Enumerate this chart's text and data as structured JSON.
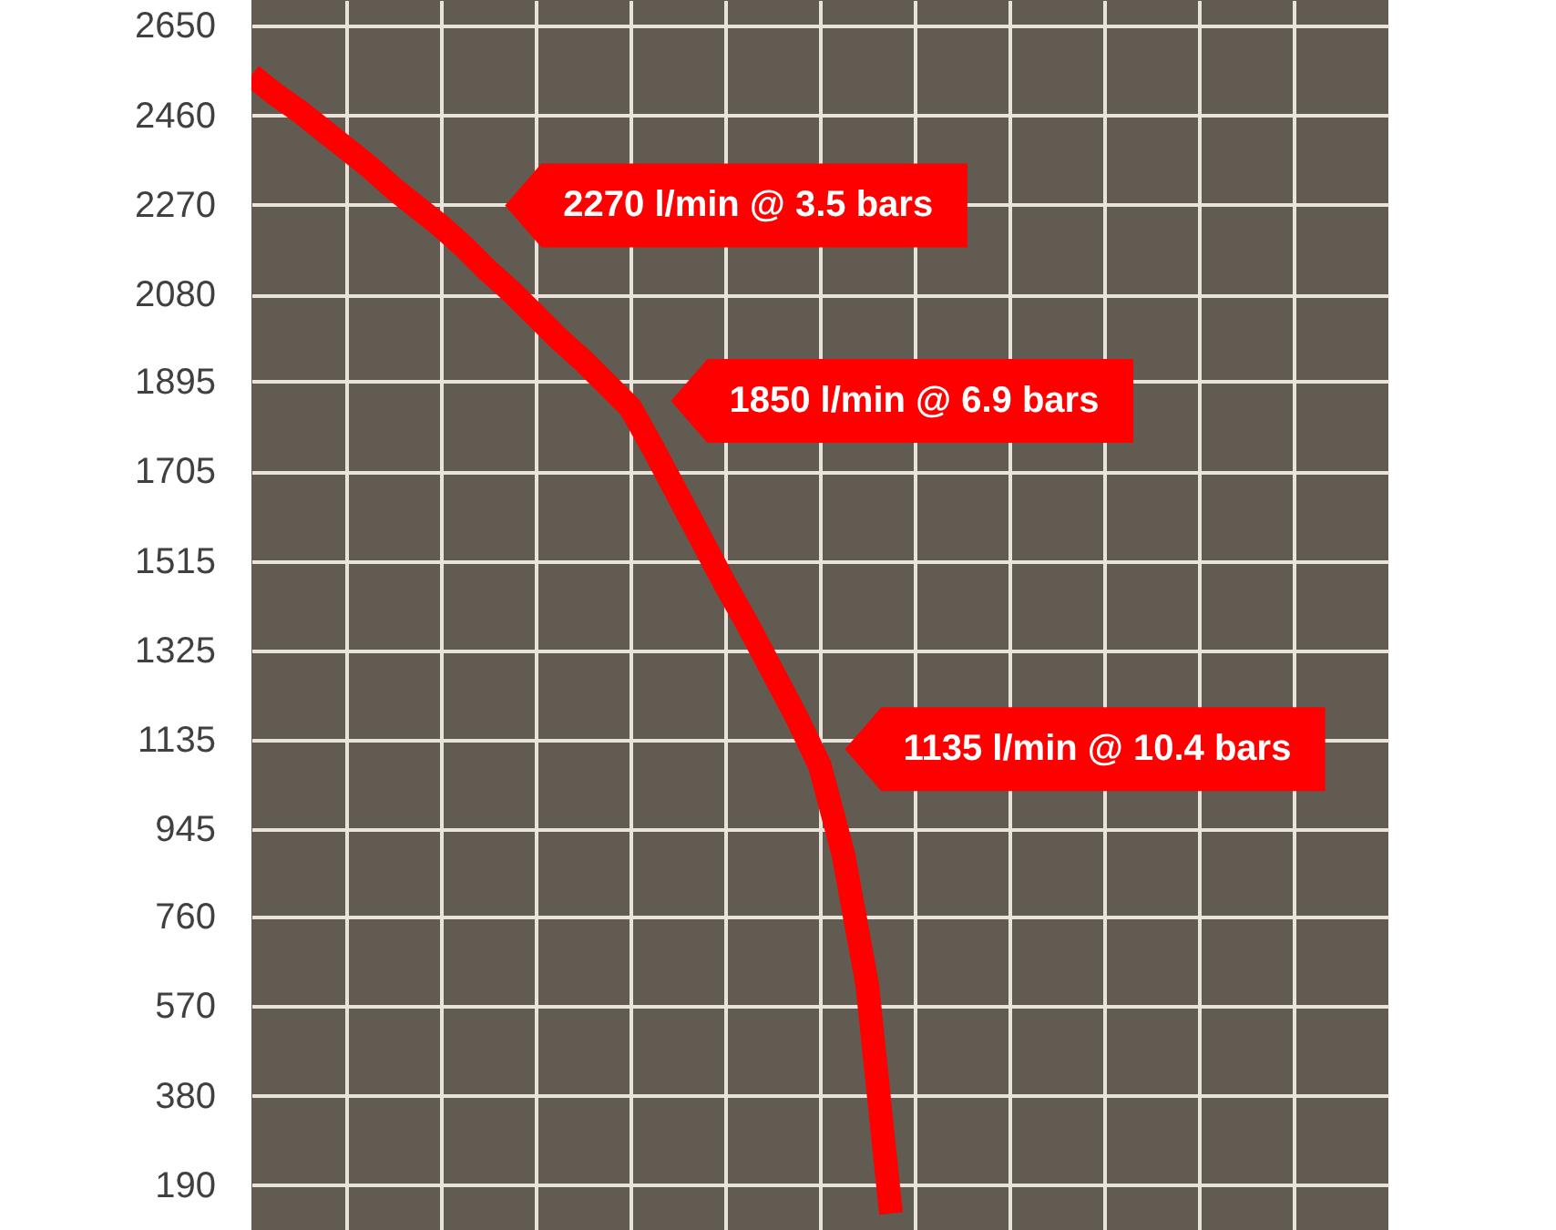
{
  "chart_data": {
    "type": "line",
    "categories": [
      null,
      null,
      null,
      null,
      null,
      null,
      null,
      null,
      null,
      null,
      null,
      null,
      null,
      null,
      null,
      null,
      null,
      null,
      null,
      null,
      null,
      null,
      null,
      null,
      null,
      null,
      null,
      null,
      null,
      null,
      null,
      null,
      null,
      null,
      null,
      null,
      null,
      null,
      null,
      null,
      null,
      null,
      null,
      null,
      null,
      null,
      null,
      null,
      null
    ],
    "series": [
      {
        "color": "#ff0000",
        "values": [
          2545,
          2505,
          2470,
          2430,
          2390,
          2350,
          2305,
          2265,
          2225,
          2180,
          2130,
          2085,
          2035,
          1985,
          1940,
          1890,
          1840,
          1750,
          1655,
          1560,
          1465,
          1375,
          1280,
          1185,
          1080,
          890,
          615,
          130,
          null,
          null,
          null,
          null,
          null,
          null,
          null,
          null,
          null,
          null,
          null,
          null,
          null,
          null,
          null,
          null,
          null,
          null,
          null,
          null,
          null
        ]
      }
    ],
    "ylim": [
      95,
      2705
    ],
    "yticks": [
      190,
      380,
      570,
      760,
      945,
      1135,
      1325,
      1515,
      1705,
      1895,
      2080,
      2270,
      2460,
      2650
    ],
    "grid": true,
    "tick_labels": "y",
    "line_style": "solid",
    "annotations": [
      "2270 l/min @ 3.5 bars",
      "1850 l/min @ 6.9 bars",
      "1135 l/min @ 10.4 bars"
    ]
  }
}
